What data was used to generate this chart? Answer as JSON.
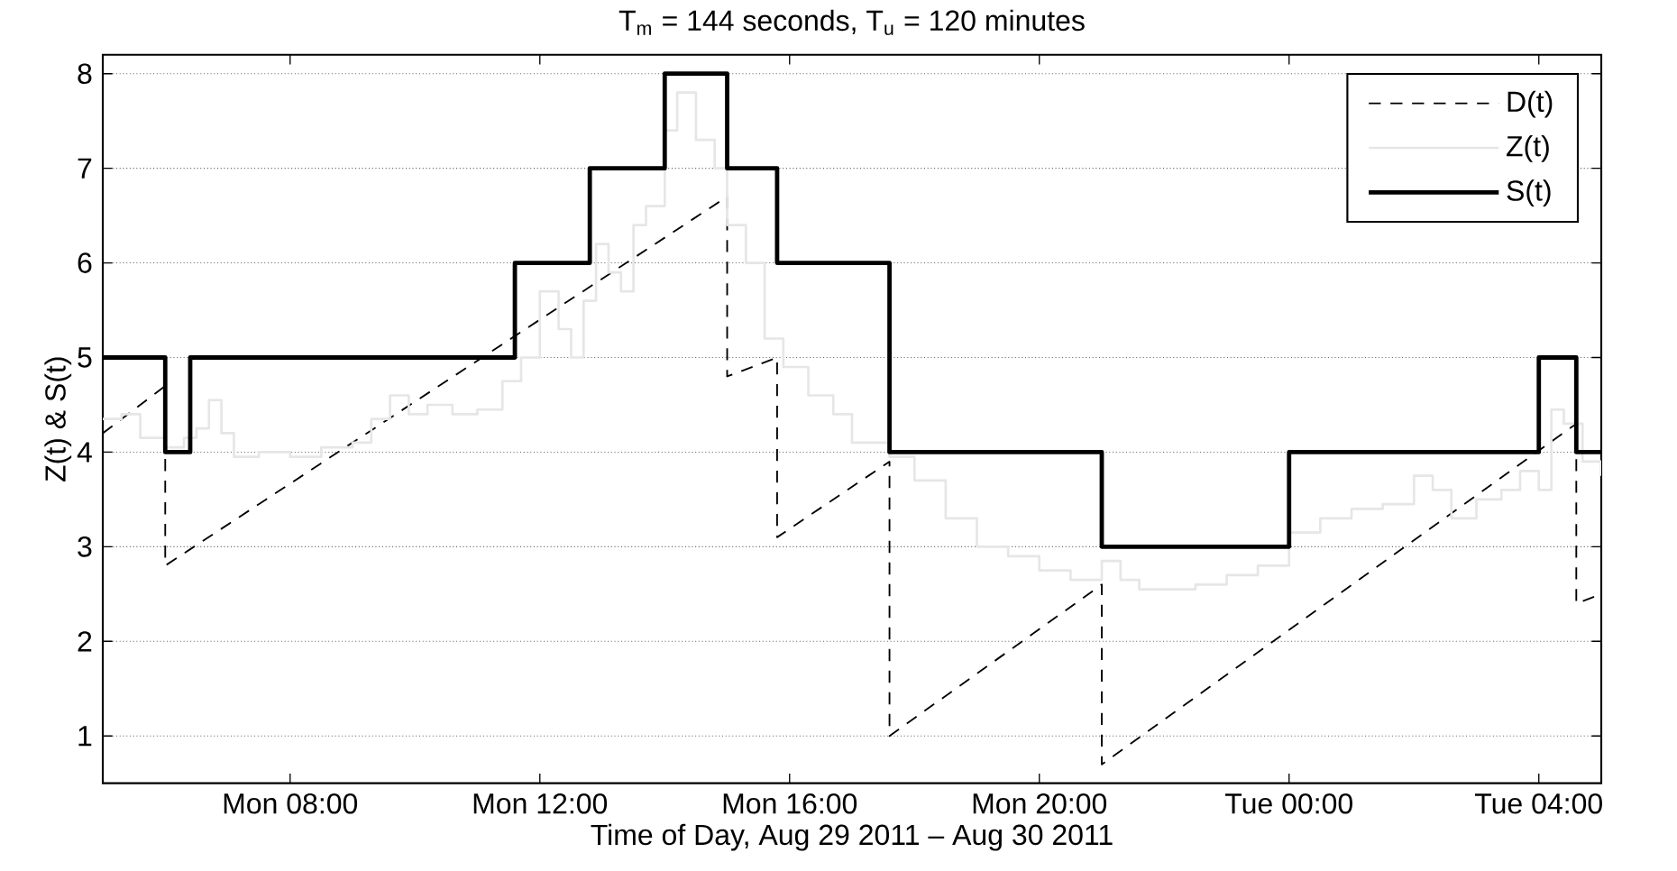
{
  "chart_data": {
    "type": "step",
    "title": "T$_{m}$ = 144 seconds, T$_{u}$ = 120 minutes",
    "xlabel": "Time of Day, Aug 29 2011 – Aug 30 2011",
    "ylabel": "Z(t) & S(t)",
    "xlim": [
      "2011-08-29T05:00",
      "2011-08-30T05:00"
    ],
    "ylim": [
      0.5,
      8.2
    ],
    "xticks": [
      {
        "value": "2011-08-29T08:00",
        "label": "Mon 08:00"
      },
      {
        "value": "2011-08-29T12:00",
        "label": "Mon 12:00"
      },
      {
        "value": "2011-08-29T16:00",
        "label": "Mon 16:00"
      },
      {
        "value": "2011-08-29T20:00",
        "label": "Mon 20:00"
      },
      {
        "value": "2011-08-30T00:00",
        "label": "Tue 00:00"
      },
      {
        "value": "2011-08-30T04:00",
        "label": "Tue 04:00"
      }
    ],
    "yticks": [
      1,
      2,
      3,
      4,
      5,
      6,
      7,
      8
    ],
    "grid": "y",
    "legend": "top right",
    "series": [
      {
        "name": "D(t)",
        "type": "line",
        "line_style": "dashed",
        "color": "#000000",
        "x": [
          "2011-08-29T05:00",
          "2011-08-29T06:00",
          "2011-08-29T06:00",
          "2011-08-29T15:00",
          "2011-08-29T15:00",
          "2011-08-29T15:48",
          "2011-08-29T15:48",
          "2011-08-29T17:36",
          "2011-08-29T17:36",
          "2011-08-29T21:00",
          "2011-08-29T21:00",
          "2011-08-30T04:36",
          "2011-08-30T04:36",
          "2011-08-30T05:00"
        ],
        "values": [
          4.2,
          4.7,
          2.8,
          6.7,
          4.8,
          5.0,
          3.1,
          3.9,
          1.0,
          2.6,
          0.7,
          4.3,
          2.4,
          2.5
        ]
      },
      {
        "name": "Z(t)",
        "type": "step",
        "line_style": "solid",
        "color": "#e6e6e6",
        "x": [
          "2011-08-29T05:00",
          "2011-08-29T05:18",
          "2011-08-29T05:36",
          "2011-08-29T06:00",
          "2011-08-29T06:18",
          "2011-08-29T06:30",
          "2011-08-29T06:42",
          "2011-08-29T06:54",
          "2011-08-29T07:06",
          "2011-08-29T07:30",
          "2011-08-29T08:00",
          "2011-08-29T08:30",
          "2011-08-29T09:00",
          "2011-08-29T09:18",
          "2011-08-29T09:36",
          "2011-08-29T09:54",
          "2011-08-29T10:12",
          "2011-08-29T10:36",
          "2011-08-29T11:00",
          "2011-08-29T11:24",
          "2011-08-29T11:42",
          "2011-08-29T12:00",
          "2011-08-29T12:18",
          "2011-08-29T12:30",
          "2011-08-29T12:42",
          "2011-08-29T12:54",
          "2011-08-29T13:06",
          "2011-08-29T13:18",
          "2011-08-29T13:30",
          "2011-08-29T13:42",
          "2011-08-29T14:00",
          "2011-08-29T14:12",
          "2011-08-29T14:30",
          "2011-08-29T14:48",
          "2011-08-29T15:00",
          "2011-08-29T15:18",
          "2011-08-29T15:36",
          "2011-08-29T15:54",
          "2011-08-29T16:18",
          "2011-08-29T16:42",
          "2011-08-29T17:00",
          "2011-08-29T17:36",
          "2011-08-29T18:00",
          "2011-08-29T18:30",
          "2011-08-29T19:00",
          "2011-08-29T19:30",
          "2011-08-29T20:00",
          "2011-08-29T20:30",
          "2011-08-29T21:00",
          "2011-08-29T21:18",
          "2011-08-29T21:36",
          "2011-08-29T22:00",
          "2011-08-29T22:30",
          "2011-08-29T23:00",
          "2011-08-29T23:30",
          "2011-08-30T00:00",
          "2011-08-30T00:30",
          "2011-08-30T01:00",
          "2011-08-30T01:30",
          "2011-08-30T02:00",
          "2011-08-30T02:18",
          "2011-08-30T02:36",
          "2011-08-30T03:00",
          "2011-08-30T03:24",
          "2011-08-30T03:42",
          "2011-08-30T04:00",
          "2011-08-30T04:12",
          "2011-08-30T04:24",
          "2011-08-30T04:42",
          "2011-08-30T05:00"
        ],
        "values": [
          4.35,
          4.4,
          4.15,
          4.05,
          4.15,
          4.25,
          4.55,
          4.2,
          3.95,
          4.0,
          3.95,
          4.05,
          4.1,
          4.35,
          4.6,
          4.4,
          4.5,
          4.4,
          4.45,
          4.75,
          5.0,
          5.7,
          5.3,
          5.0,
          5.6,
          6.2,
          5.9,
          5.7,
          6.4,
          6.6,
          7.4,
          7.8,
          7.3,
          7.0,
          6.4,
          6.0,
          5.2,
          4.9,
          4.6,
          4.4,
          4.1,
          3.95,
          3.7,
          3.3,
          3.0,
          2.9,
          2.75,
          2.65,
          2.85,
          2.65,
          2.55,
          2.55,
          2.6,
          2.7,
          2.8,
          3.15,
          3.3,
          3.4,
          3.45,
          3.75,
          3.6,
          3.3,
          3.5,
          3.6,
          3.8,
          3.6,
          4.45,
          4.3,
          3.9,
          3.75
        ]
      },
      {
        "name": "S(t)",
        "type": "step",
        "line_style": "solid",
        "color": "#000000",
        "x": [
          "2011-08-29T05:00",
          "2011-08-29T06:00",
          "2011-08-29T06:24",
          "2011-08-29T11:36",
          "2011-08-29T12:48",
          "2011-08-29T14:00",
          "2011-08-29T15:00",
          "2011-08-29T15:48",
          "2011-08-29T17:36",
          "2011-08-29T21:00",
          "2011-08-30T00:00",
          "2011-08-30T04:00",
          "2011-08-30T04:36",
          "2011-08-30T05:00"
        ],
        "values": [
          5,
          4,
          5,
          6,
          7,
          8,
          7,
          6,
          4,
          3,
          4,
          5,
          4,
          4
        ]
      }
    ]
  }
}
